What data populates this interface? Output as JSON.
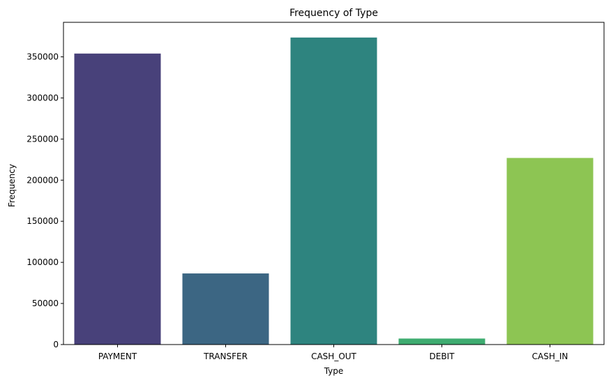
{
  "chart_data": {
    "type": "bar",
    "title": "Frequency of Type",
    "xlabel": "Type",
    "ylabel": "Frequency",
    "categories": [
      "PAYMENT",
      "TRANSFER",
      "CASH_OUT",
      "DEBIT",
      "CASH_IN"
    ],
    "values": [
      354000,
      86500,
      373500,
      7300,
      227000
    ],
    "colors": [
      "#48417a",
      "#3c6683",
      "#2e847f",
      "#3eac70",
      "#8dc553"
    ],
    "ylim": [
      0,
      392000
    ],
    "yticks": [
      0,
      50000,
      100000,
      150000,
      200000,
      250000,
      300000,
      350000
    ],
    "grid": false,
    "legend": "none"
  }
}
